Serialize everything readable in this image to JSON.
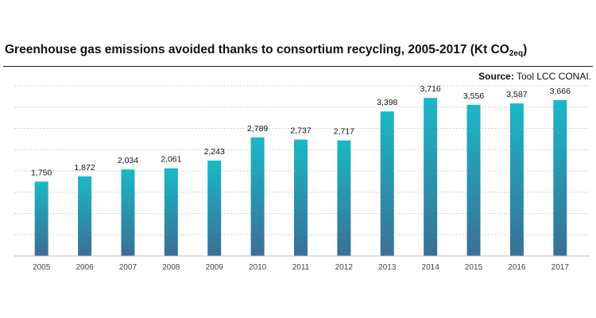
{
  "chart_data": {
    "type": "bar",
    "title_main": "Greenhouse gas emissions avoided thanks to consortium recycling, 2005-2017 (Kt CO",
    "title_sub": "2eq",
    "title_end": ")",
    "source_label": "Source:",
    "source_text": "Tool LCC CONAI.",
    "categories": [
      "2005",
      "2006",
      "2007",
      "2008",
      "2009",
      "2010",
      "2011",
      "2012",
      "2013",
      "2014",
      "2015",
      "2016",
      "2017"
    ],
    "values": [
      1750,
      1872,
      2034,
      2061,
      2243,
      2789,
      2737,
      2717,
      3398,
      3716,
      3556,
      3587,
      3666
    ],
    "value_labels": [
      "1,750",
      "1,872",
      "2,034",
      "2,061",
      "2,243",
      "2,789",
      "2,737",
      "2,717",
      "3,398",
      "3,716",
      "3,556",
      "3,587",
      "3,666"
    ],
    "ylim": [
      0,
      4000
    ],
    "grid": "dashed horizontal",
    "colors": {
      "bar_top": "#1ab8c6",
      "bar_bottom": "#3a6f96"
    }
  }
}
